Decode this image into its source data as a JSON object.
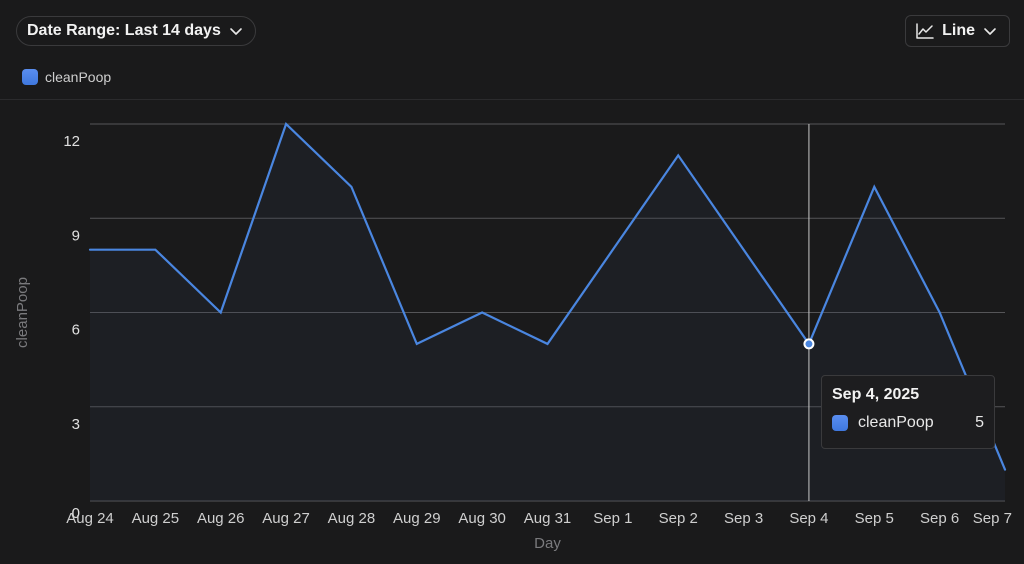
{
  "controls": {
    "date_range_label": "Date Range: Last 14 days",
    "chart_type_label": "Line"
  },
  "legend": {
    "series_label": "cleanPoop"
  },
  "tooltip": {
    "date": "Sep 4, 2025",
    "series": "cleanPoop",
    "value": "5"
  },
  "colors": {
    "line": "#4a86e0",
    "background": "#1a1a1b",
    "grid": "#555558"
  },
  "chart_data": {
    "type": "line",
    "categories": [
      "Aug 24",
      "Aug 25",
      "Aug 26",
      "Aug 27",
      "Aug 28",
      "Aug 29",
      "Aug 30",
      "Aug 31",
      "Sep 1",
      "Sep 2",
      "Sep 3",
      "Sep 4",
      "Sep 5",
      "Sep 6",
      "Sep 7"
    ],
    "series": [
      {
        "name": "cleanPoop",
        "values": [
          8,
          8,
          6,
          12,
          10,
          5,
          6,
          5,
          8,
          11,
          8,
          5,
          10,
          6,
          1
        ]
      }
    ],
    "xlabel": "Day",
    "ylabel": "cleanPoop",
    "ylim": [
      0,
      12
    ],
    "yticks": [
      "0",
      "3",
      "6",
      "9",
      "12"
    ],
    "grid": true,
    "highlighted_category": "Sep 4"
  }
}
